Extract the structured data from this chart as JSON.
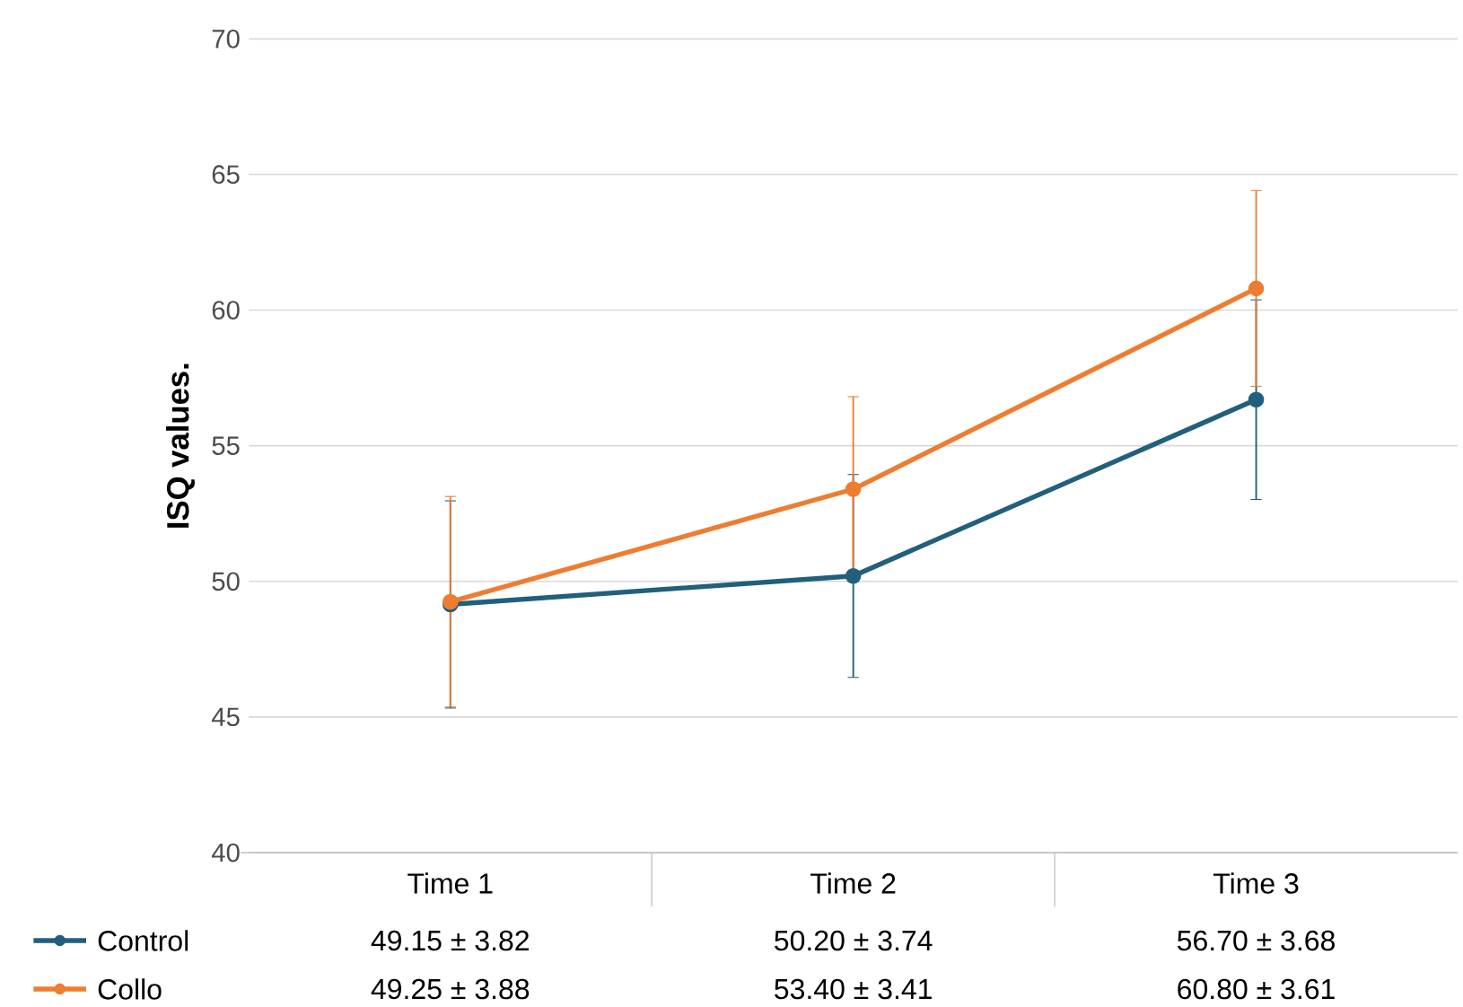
{
  "chart_data": {
    "type": "line",
    "ylabel": "ISQ values.",
    "categories": [
      "Time 1",
      "Time 2",
      "Time 3"
    ],
    "series": [
      {
        "name": "Control",
        "color": "#215f7d",
        "values": [
          49.15,
          50.2,
          56.7
        ],
        "errors": [
          3.82,
          3.74,
          3.68
        ],
        "value_labels": [
          "49.15 ± 3.82",
          "50.20 ± 3.74",
          "56.70 ± 3.68"
        ]
      },
      {
        "name": "Collo",
        "color": "#ed7d31",
        "values": [
          49.25,
          53.4,
          60.8
        ],
        "errors": [
          3.88,
          3.41,
          3.61
        ],
        "value_labels": [
          "49.25 ± 3.88",
          "53.40 ± 3.41",
          "60.80 ± 3.61"
        ]
      }
    ],
    "ylim": [
      40,
      70
    ],
    "yticks": [
      40,
      45,
      50,
      55,
      60,
      65,
      70
    ],
    "grid": "y",
    "legend": "bottom",
    "marker": "circle",
    "line_style": "solid"
  }
}
